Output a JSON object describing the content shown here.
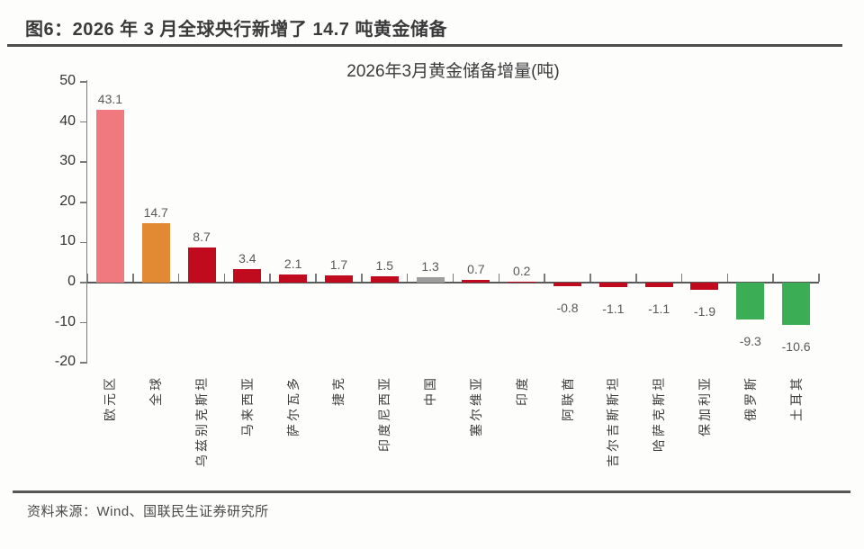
{
  "header": {
    "title": "图6：2026 年 3 月全球央行新增了 14.7 吨黄金储备"
  },
  "footer": {
    "source": "资料来源：Wind、国联民生证券研究所"
  },
  "colors": {
    "pink": "#F0797F",
    "orange": "#E18A33",
    "dark_red": "#C00A1E",
    "gray": "#9D9D9D",
    "green": "#3BAE55",
    "axis": "#7a7a7a",
    "zero_line": "#595959",
    "value_label": "#595959",
    "tick_label": "#333333",
    "category_label": "#3d3d3d"
  },
  "chart_data": {
    "type": "bar",
    "title": "2026年3月黄金储备增量(吨)",
    "xlabel": "",
    "ylabel": "",
    "ylim": [
      -20,
      50
    ],
    "yticks": [
      50,
      40,
      30,
      20,
      10,
      0,
      -10,
      -20
    ],
    "grid": false,
    "legend": "none",
    "categories": [
      "欧元区",
      "全球",
      "乌兹别克斯坦",
      "马来西亚",
      "萨尔瓦多",
      "捷克",
      "印度尼西亚",
      "中国",
      "塞尔维亚",
      "印度",
      "阿联酋",
      "吉尔吉斯斯坦",
      "哈萨克斯坦",
      "保加利亚",
      "俄罗斯",
      "土耳其"
    ],
    "values": [
      43.1,
      14.7,
      8.7,
      3.4,
      2.1,
      1.7,
      1.5,
      1.3,
      0.7,
      0.2,
      -0.8,
      -1.1,
      -1.1,
      -1.9,
      -9.3,
      -10.6
    ],
    "bar_colors": [
      "#F0797F",
      "#E18A33",
      "#C00A1E",
      "#C00A1E",
      "#C00A1E",
      "#C00A1E",
      "#C00A1E",
      "#9D9D9D",
      "#C00A1E",
      "#C00A1E",
      "#C00A1E",
      "#C00A1E",
      "#C00A1E",
      "#C00A1E",
      "#3BAE55",
      "#3BAE55"
    ]
  }
}
